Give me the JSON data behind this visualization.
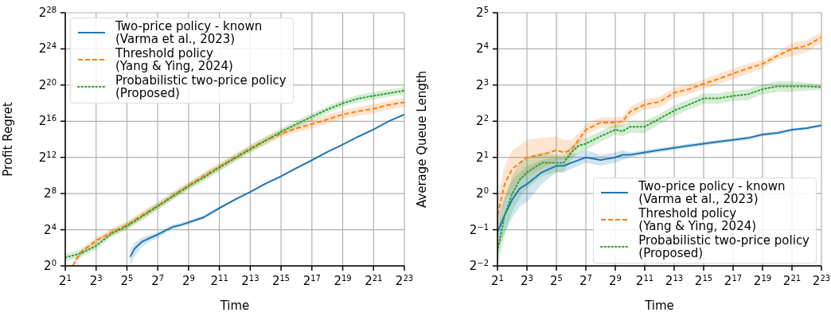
{
  "chart_data": [
    {
      "type": "line",
      "xlabel": "Time",
      "ylabel": "Profit Regret",
      "log": "xy",
      "grid": true,
      "legend": "top left",
      "xlim": [
        2,
        8388608
      ],
      "ylim": [
        1,
        268435456
      ],
      "xticks": [
        {
          "value": 2,
          "label": "2$^{1}$"
        },
        {
          "value": 8,
          "label": "2$^{3}$"
        },
        {
          "value": 32,
          "label": "2$^{5}$"
        },
        {
          "value": 128,
          "label": "2$^{7}$"
        },
        {
          "value": 512,
          "label": "2$^{9}$"
        },
        {
          "value": 2048,
          "label": "2$^{11}$"
        },
        {
          "value": 8192,
          "label": "2$^{13}$"
        },
        {
          "value": 32768,
          "label": "2$^{15}$"
        },
        {
          "value": 131072,
          "label": "2$^{17}$"
        },
        {
          "value": 524288,
          "label": "2$^{19}$"
        },
        {
          "value": 2097152,
          "label": "2$^{21}$"
        },
        {
          "value": 8388608,
          "label": "2$^{23}$"
        }
      ],
      "yticks": [
        {
          "value": 1,
          "label": "2$^{0}$"
        },
        {
          "value": 16,
          "label": "2$^{4}$"
        },
        {
          "value": 256,
          "label": "2$^{8}$"
        },
        {
          "value": 4096,
          "label": "2$^{12}$"
        },
        {
          "value": 65536,
          "label": "2$^{16}$"
        },
        {
          "value": 1048576,
          "label": "2$^{20}$"
        },
        {
          "value": 16777216,
          "label": "2$^{24}$"
        },
        {
          "value": 268435456,
          "label": "2$^{28}$"
        }
      ],
      "series": [
        {
          "name": "Two-price policy - known\n(Varma et al., 2023)",
          "color": "#1f77b4",
          "line_style": "solid",
          "x": [
            37,
            45,
            64,
            91,
            128,
            180,
            256,
            360,
            512,
            1024,
            2048,
            4096,
            8192,
            16384,
            32768,
            65536,
            131072,
            262144,
            524288,
            1048576,
            2097152,
            4194304,
            8388608
          ],
          "values": [
            2.0,
            3.7,
            6.5,
            8.6,
            11,
            15,
            20,
            23,
            28,
            42,
            84,
            160,
            290,
            550,
            960,
            1800,
            3300,
            6200,
            11000,
            20000,
            35000,
            66000,
            110000
          ],
          "lower": [
            1.0,
            2.0,
            4.6,
            6.5,
            8.6,
            12,
            17,
            20,
            24,
            36,
            74,
            150,
            270,
            520,
            920,
            1700,
            3200,
            6000,
            11000,
            19000,
            34000,
            64000,
            110000
          ],
          "upper": [
            3.5,
            6.0,
            9.0,
            11,
            13,
            18,
            24,
            27,
            32,
            48,
            95,
            180,
            310,
            580,
            1000,
            1900,
            3400,
            6400,
            11000,
            21000,
            36000,
            68000,
            120000
          ]
        },
        {
          "name": "Threshold policy\n(Yang & Ying, 2024)",
          "color": "#ff7f0e",
          "line_style": "dashed",
          "x": [
            2.8,
            4,
            8,
            16,
            32,
            64,
            128,
            256,
            512,
            1024,
            2048,
            4096,
            8192,
            16384,
            32768,
            65536,
            131072,
            262144,
            524288,
            1048576,
            2097152,
            4194304,
            8388608
          ],
          "values": [
            1,
            2.8,
            7.0,
            13,
            23,
            49,
            100,
            220,
            480,
            1000,
            2000,
            4100,
            8200,
            15000,
            25000,
            38000,
            53000,
            75000,
            110000,
            140000,
            170000,
            230000,
            280000
          ],
          "lower": [
            1,
            2.1,
            5.3,
            9.9,
            17,
            37,
            76,
            170,
            360,
            760,
            1500,
            3100,
            6200,
            11000,
            19000,
            28000,
            38000,
            53000,
            76000,
            97000,
            120000,
            160000,
            200000
          ],
          "upper": [
            1.3,
            3.7,
            9.2,
            17,
            30,
            65,
            130,
            290,
            630,
            1300,
            2600,
            5400,
            11000,
            20000,
            35000,
            54000,
            75000,
            110000,
            150000,
            200000,
            240000,
            320000,
            400000
          ]
        },
        {
          "name": "Probabilistic two-price policy\n(Proposed)",
          "color": "#2ca02c",
          "line_style": "dotted",
          "x": [
            2,
            4,
            8,
            16,
            32,
            64,
            128,
            256,
            512,
            1024,
            2048,
            4096,
            8192,
            16384,
            32768,
            65536,
            131072,
            262144,
            524288,
            1048576,
            2097152,
            4194304,
            8388608
          ],
          "values": [
            1.9,
            2.6,
            4.6,
            12,
            21,
            45,
            97,
            210,
            450,
            890,
            1900,
            3800,
            7600,
            15000,
            29000,
            53000,
            93000,
            160000,
            260000,
            370000,
            460000,
            560000,
            690000
          ],
          "lower": [
            1.4,
            2.0,
            3.5,
            9.1,
            16,
            34,
            74,
            160,
            340,
            680,
            1400,
            2900,
            5800,
            11000,
            22000,
            40000,
            71000,
            120000,
            200000,
            280000,
            350000,
            430000,
            520000
          ],
          "upper": [
            2.5,
            3.4,
            6.1,
            16,
            28,
            59,
            130,
            280,
            590,
            1200,
            2500,
            5000,
            10000,
            20000,
            38000,
            70000,
            120000,
            210000,
            340000,
            490000,
            610000,
            740000,
            910000
          ]
        }
      ]
    },
    {
      "type": "line",
      "xlabel": "Time",
      "ylabel": "Average Queue Length",
      "log": "xy",
      "grid": true,
      "legend": "bottom right",
      "xlim": [
        2,
        8388608
      ],
      "ylim": [
        0.25,
        32
      ],
      "xticks": [
        {
          "value": 2,
          "label": "2$^{1}$"
        },
        {
          "value": 8,
          "label": "2$^{3}$"
        },
        {
          "value": 32,
          "label": "2$^{5}$"
        },
        {
          "value": 128,
          "label": "2$^{7}$"
        },
        {
          "value": 512,
          "label": "2$^{9}$"
        },
        {
          "value": 2048,
          "label": "2$^{11}$"
        },
        {
          "value": 8192,
          "label": "2$^{13}$"
        },
        {
          "value": 32768,
          "label": "2$^{15}$"
        },
        {
          "value": 131072,
          "label": "2$^{17}$"
        },
        {
          "value": 524288,
          "label": "2$^{19}$"
        },
        {
          "value": 2097152,
          "label": "2$^{21}$"
        },
        {
          "value": 8388608,
          "label": "2$^{23}$"
        }
      ],
      "yticks": [
        {
          "value": 0.25,
          "label": "2$^{−2}$"
        },
        {
          "value": 0.5,
          "label": "2$^{−1}$"
        },
        {
          "value": 1,
          "label": "2$^{0}$"
        },
        {
          "value": 2,
          "label": "2$^{1}$"
        },
        {
          "value": 4,
          "label": "2$^{2}$"
        },
        {
          "value": 8,
          "label": "2$^{3}$"
        },
        {
          "value": 16,
          "label": "2$^{4}$"
        },
        {
          "value": 32,
          "label": "2$^{5}$"
        }
      ],
      "x": [
        2,
        2.8,
        4,
        5.7,
        8,
        16,
        32,
        45,
        64,
        91,
        128,
        256,
        512,
        720,
        1024,
        2048,
        4096,
        8192,
        16384,
        32768,
        65536,
        131072,
        262144,
        524288,
        1048576,
        2097152,
        4194304,
        8388608
      ],
      "series": [
        {
          "name": "Two-price policy - known\n(Varma et al., 2023)",
          "color": "#1f77b4",
          "line_style": "solid",
          "values": [
            0.48,
            0.66,
            0.89,
            1.1,
            1.2,
            1.5,
            1.7,
            1.7,
            1.8,
            1.9,
            2.0,
            1.9,
            2.0,
            2.1,
            2.1,
            2.2,
            2.3,
            2.4,
            2.5,
            2.6,
            2.7,
            2.8,
            2.9,
            3.1,
            3.2,
            3.4,
            3.5,
            3.7
          ],
          "lower": [
            0.34,
            0.47,
            0.63,
            0.78,
            0.85,
            1.2,
            1.5,
            1.5,
            1.6,
            1.7,
            1.8,
            1.7,
            1.8,
            1.9,
            2.0,
            2.1,
            2.2,
            2.3,
            2.4,
            2.5,
            2.6,
            2.7,
            2.8,
            3.0,
            3.1,
            3.3,
            3.4,
            3.6
          ],
          "upper": [
            0.68,
            0.93,
            1.3,
            1.5,
            1.7,
            1.9,
            2.0,
            2.0,
            2.1,
            2.2,
            2.3,
            2.1,
            2.2,
            2.3,
            2.2,
            2.3,
            2.4,
            2.5,
            2.6,
            2.7,
            2.8,
            2.9,
            3.0,
            3.2,
            3.3,
            3.5,
            3.6,
            3.8
          ]
        },
        {
          "name": "Threshold policy\n(Yang & Ying, 2024)",
          "color": "#ff7f0e",
          "line_style": "dashed",
          "values": [
            0.66,
            1.2,
            1.6,
            1.8,
            2.0,
            2.1,
            2.3,
            2.2,
            2.3,
            2.8,
            3.4,
            3.9,
            3.9,
            4.0,
            4.8,
            5.5,
            5.8,
            6.9,
            7.4,
            8.2,
            9.0,
            10,
            11,
            12,
            14,
            16,
            17,
            20
          ],
          "lower": [
            0.47,
            0.85,
            1.1,
            1.3,
            1.4,
            1.6,
            1.9,
            1.9,
            2.0,
            2.5,
            3.1,
            3.5,
            3.5,
            3.6,
            4.3,
            5.0,
            5.2,
            6.2,
            6.7,
            7.4,
            8.1,
            9.0,
            9.9,
            11,
            13,
            14,
            15,
            18
          ],
          "upper": [
            0.93,
            1.7,
            2.3,
            2.5,
            2.8,
            2.9,
            3.0,
            2.8,
            2.8,
            3.2,
            3.8,
            4.3,
            4.3,
            4.4,
            5.3,
            6.1,
            6.4,
            7.6,
            8.1,
            9.0,
            9.9,
            11,
            12,
            13,
            15,
            18,
            19,
            22
          ]
        },
        {
          "name": "Probabilistic two-price policy\n(Proposed)",
          "color": "#2ca02c",
          "line_style": "dotted",
          "values": [
            0.33,
            0.66,
            1.0,
            1.3,
            1.5,
            1.8,
            1.8,
            1.8,
            2.2,
            2.5,
            2.6,
            3.0,
            3.4,
            3.3,
            3.6,
            3.6,
            4.2,
            4.9,
            5.5,
            6.2,
            6.2,
            6.5,
            6.7,
            7.4,
            7.8,
            7.8,
            7.8,
            7.7
          ],
          "lower": [
            0.25,
            0.45,
            0.71,
            0.92,
            1.1,
            1.4,
            1.5,
            1.5,
            1.9,
            2.2,
            2.3,
            2.7,
            3.1,
            3.0,
            3.2,
            3.2,
            3.8,
            4.4,
            5.0,
            5.6,
            5.6,
            5.9,
            6.0,
            6.7,
            7.0,
            7.0,
            7.2,
            7.3
          ],
          "upper": [
            0.47,
            0.93,
            1.4,
            1.8,
            2.0,
            2.2,
            2.1,
            2.1,
            2.5,
            2.8,
            2.9,
            3.3,
            3.8,
            3.7,
            4.0,
            4.0,
            4.6,
            5.4,
            6.1,
            6.8,
            6.8,
            7.2,
            7.4,
            8.1,
            8.6,
            8.6,
            8.4,
            8.1
          ]
        }
      ]
    }
  ]
}
